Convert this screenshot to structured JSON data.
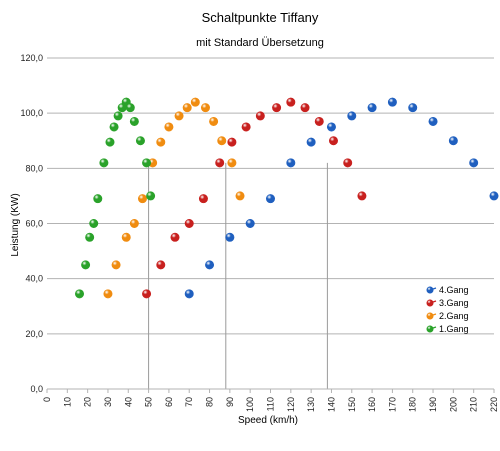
{
  "chart_data": {
    "type": "scatter",
    "title": "Schaltpunkte Tiffany",
    "subtitle": "mit Standard Übersetzung",
    "xlabel": "Speed (km/h)",
    "ylabel": "Leistung (KW)",
    "xlim": [
      0,
      220
    ],
    "ylim": [
      0,
      120
    ],
    "x_ticks": [
      "0",
      "10",
      "20",
      "30",
      "40",
      "50",
      "60",
      "70",
      "80",
      "90",
      "100",
      "110",
      "120",
      "130",
      "140",
      "150",
      "160",
      "170",
      "180",
      "190",
      "200",
      "210",
      "220"
    ],
    "y_ticks": [
      "0,0",
      "20,0",
      "40,0",
      "60,0",
      "80,0",
      "100,0",
      "120,0"
    ],
    "grid": "horizontal",
    "legend_position": "right",
    "reference_lines_x": [
      50,
      88,
      138
    ],
    "series": [
      {
        "name": "4.Gang",
        "color": "#1f5fbf",
        "points": [
          [
            70,
            34.5
          ],
          [
            80,
            45
          ],
          [
            90,
            55
          ],
          [
            100,
            60
          ],
          [
            110,
            69
          ],
          [
            120,
            82
          ],
          [
            130,
            89.5
          ],
          [
            140,
            95
          ],
          [
            150,
            99
          ],
          [
            160,
            102
          ],
          [
            170,
            104
          ],
          [
            180,
            102
          ],
          [
            190,
            97
          ],
          [
            200,
            90
          ],
          [
            210,
            82
          ],
          [
            220,
            70
          ]
        ]
      },
      {
        "name": "3.Gang",
        "color": "#c8201e",
        "points": [
          [
            49,
            34.5
          ],
          [
            56,
            45
          ],
          [
            63,
            55
          ],
          [
            70,
            60
          ],
          [
            77,
            69
          ],
          [
            85,
            82
          ],
          [
            91,
            89.5
          ],
          [
            98,
            95
          ],
          [
            105,
            99
          ],
          [
            113,
            102
          ],
          [
            120,
            104
          ],
          [
            127,
            102
          ],
          [
            134,
            97
          ],
          [
            141,
            90
          ],
          [
            148,
            82
          ],
          [
            155,
            70
          ]
        ]
      },
      {
        "name": "2.Gang",
        "color": "#f08c10",
        "points": [
          [
            30,
            34.5
          ],
          [
            34,
            45
          ],
          [
            39,
            55
          ],
          [
            43,
            60
          ],
          [
            47,
            69
          ],
          [
            52,
            82
          ],
          [
            56,
            89.5
          ],
          [
            60,
            95
          ],
          [
            65,
            99
          ],
          [
            69,
            102
          ],
          [
            73,
            104
          ],
          [
            78,
            102
          ],
          [
            82,
            97
          ],
          [
            86,
            90
          ],
          [
            91,
            82
          ],
          [
            95,
            70
          ]
        ]
      },
      {
        "name": "1.Gang",
        "color": "#2aa22a",
        "points": [
          [
            16,
            34.5
          ],
          [
            19,
            45
          ],
          [
            21,
            55
          ],
          [
            23,
            60
          ],
          [
            25,
            69
          ],
          [
            28,
            82
          ],
          [
            31,
            89.5
          ],
          [
            33,
            95
          ],
          [
            35,
            99
          ],
          [
            37,
            102
          ],
          [
            39,
            104
          ],
          [
            41,
            102
          ],
          [
            43,
            97
          ],
          [
            46,
            90
          ],
          [
            49,
            82
          ],
          [
            51,
            70
          ]
        ]
      }
    ]
  }
}
